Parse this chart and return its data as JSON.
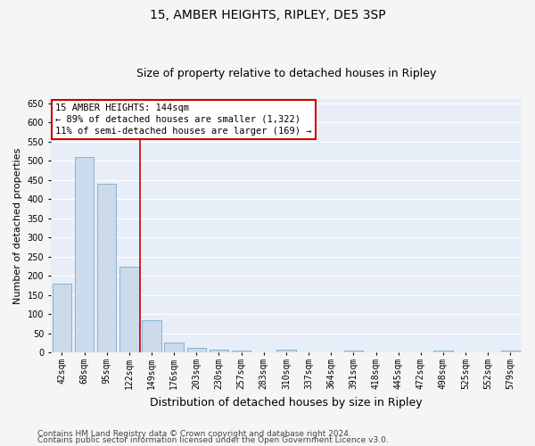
{
  "title": "15, AMBER HEIGHTS, RIPLEY, DE5 3SP",
  "subtitle": "Size of property relative to detached houses in Ripley",
  "xlabel": "Distribution of detached houses by size in Ripley",
  "ylabel": "Number of detached properties",
  "bar_color": "#ccdaec",
  "bar_edge_color": "#7aaacb",
  "background_color": "#e8eef7",
  "grid_color": "#ffffff",
  "fig_background": "#f5f5f5",
  "categories": [
    "42sqm",
    "68sqm",
    "95sqm",
    "122sqm",
    "149sqm",
    "176sqm",
    "203sqm",
    "230sqm",
    "257sqm",
    "283sqm",
    "310sqm",
    "337sqm",
    "364sqm",
    "391sqm",
    "418sqm",
    "445sqm",
    "472sqm",
    "498sqm",
    "525sqm",
    "552sqm",
    "579sqm"
  ],
  "values": [
    180,
    510,
    440,
    225,
    85,
    27,
    12,
    7,
    5,
    2,
    7,
    0,
    0,
    5,
    0,
    0,
    0,
    5,
    0,
    0,
    5
  ],
  "vline_index": 3.5,
  "vline_color": "#cc0000",
  "ylim": [
    0,
    660
  ],
  "yticks": [
    0,
    50,
    100,
    150,
    200,
    250,
    300,
    350,
    400,
    450,
    500,
    550,
    600,
    650
  ],
  "annotation_title": "15 AMBER HEIGHTS: 144sqm",
  "annotation_line1": "← 89% of detached houses are smaller (1,322)",
  "annotation_line2": "11% of semi-detached houses are larger (169) →",
  "annotation_box_color": "#cc0000",
  "footer_line1": "Contains HM Land Registry data © Crown copyright and database right 2024.",
  "footer_line2": "Contains public sector information licensed under the Open Government Licence v3.0.",
  "title_fontsize": 10,
  "subtitle_fontsize": 9,
  "ylabel_fontsize": 8,
  "xlabel_fontsize": 9,
  "annotation_fontsize": 7.5,
  "tick_fontsize": 7,
  "ytick_fontsize": 7,
  "footer_fontsize": 6.5
}
